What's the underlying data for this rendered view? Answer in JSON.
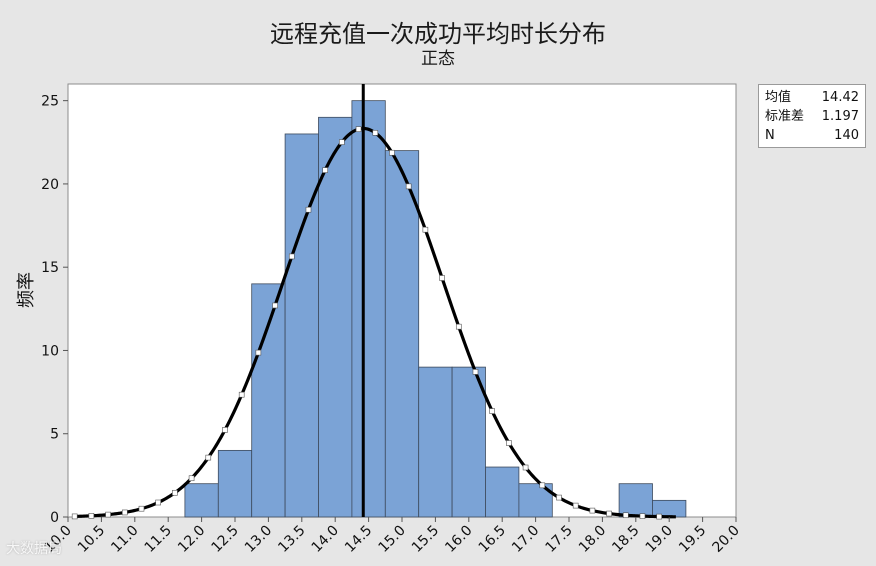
{
  "chart_data": {
    "type": "bar",
    "title": "远程充值一次成功平均时长分布",
    "subtitle": "正态",
    "ylabel": "频率",
    "xlabel": "",
    "bin_edges": [
      11.75,
      12.25,
      12.75,
      13.25,
      13.75,
      14.25,
      14.75,
      15.25,
      15.75,
      16.25,
      16.75,
      17.25,
      17.75,
      18.25,
      18.75,
      19.25
    ],
    "values": [
      2,
      4,
      14,
      23,
      24,
      25,
      22,
      9,
      9,
      3,
      2,
      0,
      0,
      2,
      1
    ],
    "xlim": [
      10.0,
      20.0
    ],
    "ylim": [
      0,
      26
    ],
    "x_ticks": [
      "10.0",
      "10.5",
      "11.0",
      "11.5",
      "12.0",
      "12.5",
      "13.0",
      "13.5",
      "14.0",
      "14.5",
      "15.0",
      "15.5",
      "16.0",
      "16.5",
      "17.0",
      "17.5",
      "18.0",
      "18.5",
      "19.0",
      "19.5",
      "20.0"
    ],
    "y_ticks": [
      "0",
      "5",
      "10",
      "15",
      "20",
      "25"
    ],
    "mean_line": 14.42,
    "normal_fit": {
      "mean": 14.42,
      "sd": 1.197,
      "n": 140,
      "bin_width": 0.5
    },
    "bar_color": "#7ba3d6",
    "grid": false
  },
  "stats": {
    "mean_label": "均值",
    "mean_value": "14.42",
    "sd_label": "标准差",
    "sd_value": "1.197",
    "n_label": "N",
    "n_value": "140"
  },
  "watermark": "大数据局"
}
